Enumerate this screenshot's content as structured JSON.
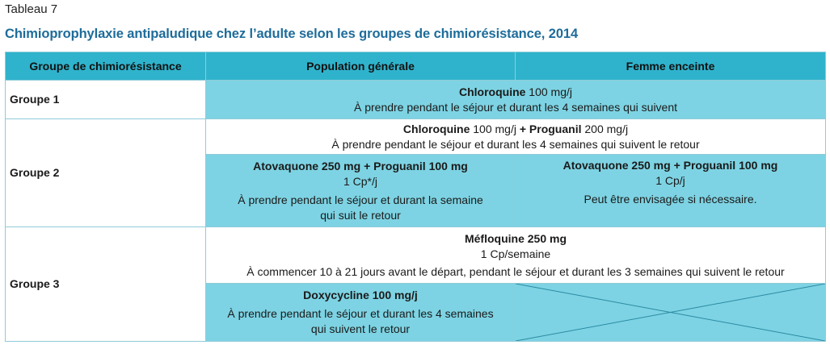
{
  "label": "Tableau 7",
  "title": "Chimioprophylaxie antipaludique chez l’adulte selon les groupes de chimiorésistance, 2014",
  "headers": [
    "Groupe de chimiorésistance",
    "Population générale",
    "Femme enceinte"
  ],
  "groups": [
    "Groupe 1",
    "Groupe 2",
    "Groupe 3"
  ],
  "g1": {
    "drug": "Chloroquine",
    "dose": " 100 mg/j",
    "note": "À prendre pendant le séjour et durant les 4 semaines qui suivent"
  },
  "g2": {
    "drug1": "Chloroquine",
    "dose1": " 100 mg/j ",
    "plus": "+",
    "drug2": " Proguanil",
    "dose2": "  200 mg/j",
    "note": "À prendre pendant le séjour et durant les 4 semaines qui suivent le retour"
  },
  "atov_gen": {
    "drug": "Atovaquone 250 mg + Proguanil 100 mg",
    "dose": "1 Cp*/j",
    "note1": "À prendre pendant le séjour et durant la semaine",
    "note2": "qui suit le retour"
  },
  "atov_preg": {
    "drug": "Atovaquone 250 mg + Proguanil 100 mg",
    "dose": "1 Cp/j",
    "note": "Peut être envisagée si nécessaire."
  },
  "meflo": {
    "drug": "Méfloquine 250 mg",
    "dose": "1 Cp/semaine",
    "note": "À commencer 10 à 21 jours avant le départ, pendant le séjour et durant les 3 semaines qui suivent le retour"
  },
  "doxy": {
    "drug": "Doxycycline 100 mg/j",
    "note1": "À prendre pendant le séjour et durant les 4 semaines",
    "note2": "qui suivent le retour"
  },
  "colors": {
    "header": "#2fb3cc",
    "cyan": "#7dd3e3",
    "title": "#1d6c9a"
  }
}
